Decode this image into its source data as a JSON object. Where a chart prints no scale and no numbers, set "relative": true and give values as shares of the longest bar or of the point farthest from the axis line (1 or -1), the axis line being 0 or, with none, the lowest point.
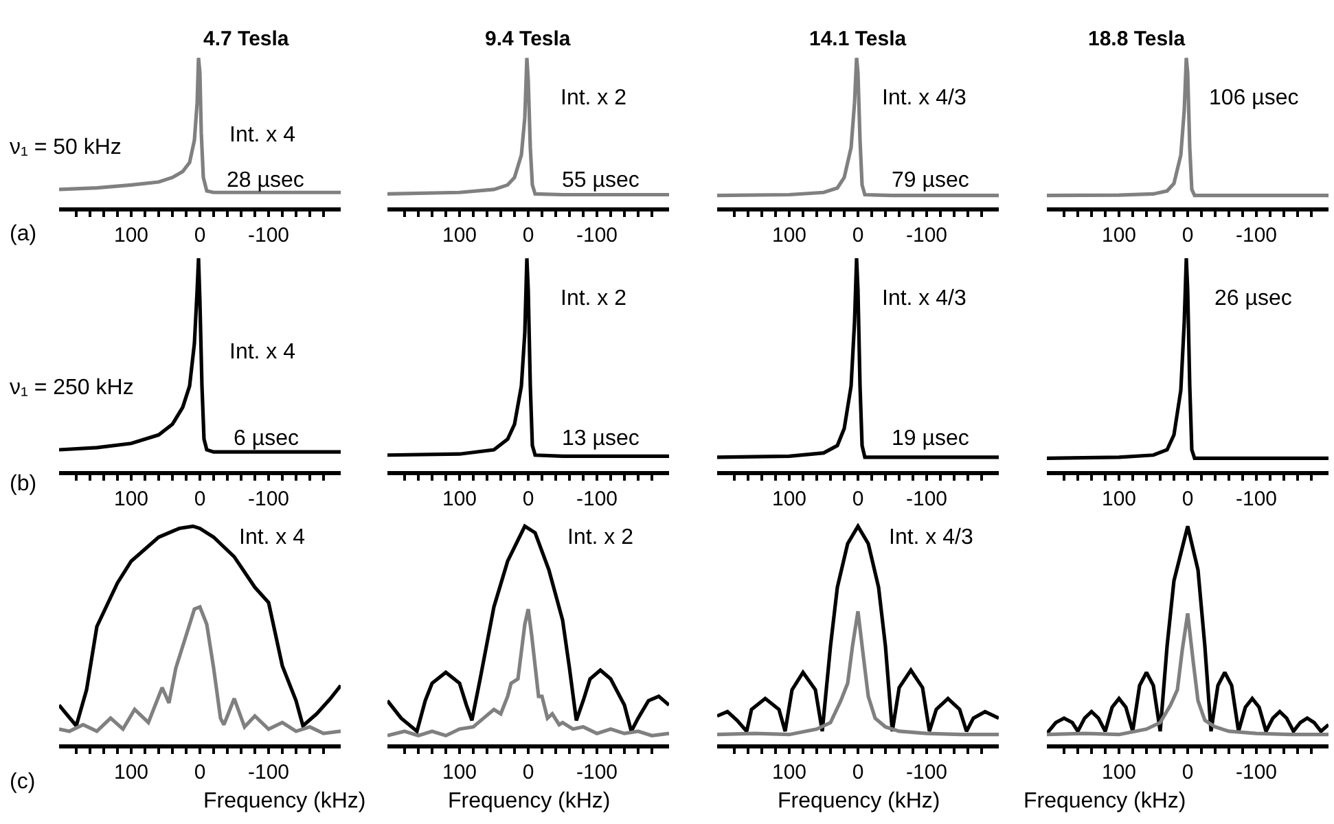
{
  "chart_data": [
    {
      "type": "line",
      "relative": true,
      "title": "4.7 Tesla",
      "annotations": [
        "Int. x 4",
        "28 µsec",
        "ν₁ = 50 kHz",
        "(a)"
      ],
      "xlim": [
        205,
        -205
      ],
      "xticks": [
        {
          "value": 180,
          "label": null
        },
        {
          "value": 160,
          "label": null
        },
        {
          "value": 140,
          "label": null
        },
        {
          "value": 120,
          "label": null
        },
        100,
        {
          "value": 80,
          "label": null
        },
        {
          "value": 60,
          "label": null
        },
        {
          "value": 40,
          "label": null
        },
        {
          "value": 20,
          "label": null
        },
        0,
        {
          "value": -20,
          "label": null
        },
        {
          "value": -40,
          "label": null
        },
        {
          "value": -60,
          "label": null
        },
        {
          "value": -80,
          "label": null
        },
        -100,
        {
          "value": -120,
          "label": null
        },
        {
          "value": -140,
          "label": null
        },
        {
          "value": -160,
          "label": null
        },
        {
          "value": -180,
          "label": null
        }
      ],
      "series": [
        {
          "color": "#808080",
          "x": [
            205,
            150,
            100,
            60,
            40,
            25,
            15,
            8,
            4,
            2,
            0,
            -2,
            -5,
            -10,
            -20,
            -50,
            -100,
            -150,
            -205
          ],
          "values": [
            0.12,
            0.13,
            0.15,
            0.17,
            0.2,
            0.24,
            0.3,
            0.45,
            0.7,
            1.0,
            0.9,
            0.5,
            0.2,
            0.11,
            0.1,
            0.1,
            0.1,
            0.1,
            0.1
          ]
        }
      ]
    },
    {
      "type": "line",
      "relative": true,
      "title": "9.4 Tesla",
      "annotations": [
        "Int. x 2",
        "55 µsec"
      ],
      "xlim": [
        205,
        -205
      ],
      "xticks": [
        {
          "value": 180,
          "label": null
        },
        {
          "value": 160,
          "label": null
        },
        {
          "value": 140,
          "label": null
        },
        {
          "value": 120,
          "label": null
        },
        100,
        {
          "value": 80,
          "label": null
        },
        {
          "value": 60,
          "label": null
        },
        {
          "value": 40,
          "label": null
        },
        {
          "value": 20,
          "label": null
        },
        0,
        {
          "value": -20,
          "label": null
        },
        {
          "value": -40,
          "label": null
        },
        {
          "value": -60,
          "label": null
        },
        {
          "value": -80,
          "label": null
        },
        -100,
        {
          "value": -120,
          "label": null
        },
        {
          "value": -140,
          "label": null
        },
        {
          "value": -160,
          "label": null
        },
        {
          "value": -180,
          "label": null
        }
      ],
      "series": [
        {
          "color": "#808080",
          "x": [
            205,
            100,
            50,
            30,
            20,
            10,
            5,
            2,
            0,
            -3,
            -6,
            -10,
            -50,
            -100,
            -205
          ],
          "values": [
            0.09,
            0.1,
            0.12,
            0.15,
            0.2,
            0.35,
            0.6,
            1.0,
            0.85,
            0.4,
            0.15,
            0.09,
            0.085,
            0.085,
            0.085
          ]
        }
      ]
    },
    {
      "type": "line",
      "relative": true,
      "title": "14.1 Tesla",
      "annotations": [
        "Int. x 4/3",
        "79 µsec"
      ],
      "xlim": [
        205,
        -205
      ],
      "xticks": [
        {
          "value": 180,
          "label": null
        },
        {
          "value": 160,
          "label": null
        },
        {
          "value": 140,
          "label": null
        },
        {
          "value": 120,
          "label": null
        },
        100,
        {
          "value": 80,
          "label": null
        },
        {
          "value": 60,
          "label": null
        },
        {
          "value": 40,
          "label": null
        },
        {
          "value": 20,
          "label": null
        },
        0,
        {
          "value": -20,
          "label": null
        },
        {
          "value": -40,
          "label": null
        },
        {
          "value": -60,
          "label": null
        },
        {
          "value": -80,
          "label": null
        },
        -100,
        {
          "value": -120,
          "label": null
        },
        {
          "value": -140,
          "label": null
        },
        {
          "value": -160,
          "label": null
        },
        {
          "value": -180,
          "label": null
        }
      ],
      "series": [
        {
          "color": "#808080",
          "x": [
            205,
            100,
            50,
            30,
            20,
            10,
            5,
            2,
            0,
            -3,
            -6,
            -10,
            -50,
            -100,
            -205
          ],
          "values": [
            0.08,
            0.085,
            0.1,
            0.13,
            0.2,
            0.4,
            0.7,
            1.0,
            0.9,
            0.45,
            0.15,
            0.085,
            0.08,
            0.08,
            0.08
          ]
        }
      ]
    },
    {
      "type": "line",
      "relative": true,
      "title": "18.8 Tesla",
      "annotations": [
        "106 µsec"
      ],
      "xlim": [
        205,
        -205
      ],
      "xticks": [
        {
          "value": 180,
          "label": null
        },
        {
          "value": 160,
          "label": null
        },
        {
          "value": 140,
          "label": null
        },
        {
          "value": 120,
          "label": null
        },
        100,
        {
          "value": 80,
          "label": null
        },
        {
          "value": 60,
          "label": null
        },
        {
          "value": 40,
          "label": null
        },
        {
          "value": 20,
          "label": null
        },
        0,
        {
          "value": -20,
          "label": null
        },
        {
          "value": -40,
          "label": null
        },
        {
          "value": -60,
          "label": null
        },
        {
          "value": -80,
          "label": null
        },
        -100,
        {
          "value": -120,
          "label": null
        },
        {
          "value": -140,
          "label": null
        },
        {
          "value": -160,
          "label": null
        },
        {
          "value": -180,
          "label": null
        }
      ],
      "series": [
        {
          "color": "#808080",
          "x": [
            205,
            100,
            50,
            30,
            20,
            10,
            5,
            2,
            0,
            -3,
            -6,
            -10,
            -50,
            -100,
            -205
          ],
          "values": [
            0.08,
            0.082,
            0.09,
            0.11,
            0.16,
            0.35,
            0.65,
            1.0,
            0.9,
            0.4,
            0.12,
            0.08,
            0.08,
            0.08,
            0.08
          ]
        }
      ]
    },
    {
      "type": "line",
      "relative": true,
      "annotations": [
        "Int. x 4",
        "6 µsec",
        "ν₁ = 250 kHz",
        "(b)"
      ],
      "xlim": [
        205,
        -205
      ],
      "xticks": [
        {
          "value": 180,
          "label": null
        },
        {
          "value": 160,
          "label": null
        },
        {
          "value": 140,
          "label": null
        },
        {
          "value": 120,
          "label": null
        },
        100,
        {
          "value": 80,
          "label": null
        },
        {
          "value": 60,
          "label": null
        },
        {
          "value": 40,
          "label": null
        },
        {
          "value": 20,
          "label": null
        },
        0,
        {
          "value": -20,
          "label": null
        },
        {
          "value": -40,
          "label": null
        },
        {
          "value": -60,
          "label": null
        },
        {
          "value": -80,
          "label": null
        },
        -100,
        {
          "value": -120,
          "label": null
        },
        {
          "value": -140,
          "label": null
        },
        {
          "value": -160,
          "label": null
        },
        {
          "value": -180,
          "label": null
        }
      ],
      "series": [
        {
          "color": "#000000",
          "x": [
            205,
            150,
            100,
            60,
            40,
            25,
            15,
            8,
            4,
            2,
            0,
            -3,
            -6,
            -10,
            -20,
            -50,
            -100,
            -150,
            -205
          ],
          "values": [
            0.1,
            0.11,
            0.13,
            0.17,
            0.22,
            0.3,
            0.4,
            0.6,
            0.85,
            1.0,
            0.8,
            0.4,
            0.15,
            0.1,
            0.09,
            0.09,
            0.09,
            0.09,
            0.09
          ]
        }
      ]
    },
    {
      "type": "line",
      "relative": true,
      "annotations": [
        "Int. x 2",
        "13 µsec"
      ],
      "xlim": [
        205,
        -205
      ],
      "xticks": [
        {
          "value": 180,
          "label": null
        },
        {
          "value": 160,
          "label": null
        },
        {
          "value": 140,
          "label": null
        },
        {
          "value": 120,
          "label": null
        },
        100,
        {
          "value": 80,
          "label": null
        },
        {
          "value": 60,
          "label": null
        },
        {
          "value": 40,
          "label": null
        },
        {
          "value": 20,
          "label": null
        },
        0,
        {
          "value": -20,
          "label": null
        },
        {
          "value": -40,
          "label": null
        },
        {
          "value": -60,
          "label": null
        },
        {
          "value": -80,
          "label": null
        },
        -100,
        {
          "value": -120,
          "label": null
        },
        {
          "value": -140,
          "label": null
        },
        {
          "value": -160,
          "label": null
        },
        {
          "value": -180,
          "label": null
        }
      ],
      "series": [
        {
          "color": "#000000",
          "x": [
            205,
            100,
            50,
            30,
            20,
            10,
            5,
            2,
            0,
            -3,
            -6,
            -10,
            -50,
            -100,
            -205
          ],
          "values": [
            0.075,
            0.08,
            0.1,
            0.15,
            0.22,
            0.4,
            0.65,
            1.0,
            0.85,
            0.4,
            0.12,
            0.075,
            0.07,
            0.07,
            0.07
          ]
        }
      ]
    },
    {
      "type": "line",
      "relative": true,
      "annotations": [
        "Int. x 4/3",
        "19 µsec"
      ],
      "xlim": [
        205,
        -205
      ],
      "xticks": [
        {
          "value": 180,
          "label": null
        },
        {
          "value": 160,
          "label": null
        },
        {
          "value": 140,
          "label": null
        },
        {
          "value": 120,
          "label": null
        },
        100,
        {
          "value": 80,
          "label": null
        },
        {
          "value": 60,
          "label": null
        },
        {
          "value": 40,
          "label": null
        },
        {
          "value": 20,
          "label": null
        },
        0,
        {
          "value": -20,
          "label": null
        },
        {
          "value": -40,
          "label": null
        },
        {
          "value": -60,
          "label": null
        },
        {
          "value": -80,
          "label": null
        },
        -100,
        {
          "value": -120,
          "label": null
        },
        {
          "value": -140,
          "label": null
        },
        {
          "value": -160,
          "label": null
        },
        {
          "value": -180,
          "label": null
        }
      ],
      "series": [
        {
          "color": "#000000",
          "x": [
            205,
            100,
            50,
            30,
            20,
            10,
            5,
            2,
            0,
            -3,
            -6,
            -10,
            -50,
            -100,
            -205
          ],
          "values": [
            0.065,
            0.07,
            0.085,
            0.12,
            0.2,
            0.4,
            0.7,
            1.0,
            0.85,
            0.4,
            0.12,
            0.065,
            0.065,
            0.065,
            0.065
          ]
        }
      ]
    },
    {
      "type": "line",
      "relative": true,
      "annotations": [
        "26 µsec"
      ],
      "xlim": [
        205,
        -205
      ],
      "xticks": [
        {
          "value": 180,
          "label": null
        },
        {
          "value": 160,
          "label": null
        },
        {
          "value": 140,
          "label": null
        },
        {
          "value": 120,
          "label": null
        },
        100,
        {
          "value": 80,
          "label": null
        },
        {
          "value": 60,
          "label": null
        },
        {
          "value": 40,
          "label": null
        },
        {
          "value": 20,
          "label": null
        },
        0,
        {
          "value": -20,
          "label": null
        },
        {
          "value": -40,
          "label": null
        },
        {
          "value": -60,
          "label": null
        },
        {
          "value": -80,
          "label": null
        },
        -100,
        {
          "value": -120,
          "label": null
        },
        {
          "value": -140,
          "label": null
        },
        {
          "value": -160,
          "label": null
        },
        {
          "value": -180,
          "label": null
        }
      ],
      "series": [
        {
          "color": "#000000",
          "x": [
            205,
            100,
            50,
            30,
            20,
            10,
            5,
            2,
            0,
            -3,
            -6,
            -10,
            -50,
            -100,
            -205
          ],
          "values": [
            0.06,
            0.065,
            0.075,
            0.1,
            0.17,
            0.38,
            0.7,
            1.0,
            0.85,
            0.4,
            0.1,
            0.06,
            0.06,
            0.06,
            0.06
          ]
        }
      ]
    },
    {
      "type": "line",
      "relative": true,
      "xlabel": "Frequency (kHz)",
      "annotations": [
        "Int. x 4",
        "(c)"
      ],
      "xlim": [
        205,
        -205
      ],
      "xticks": [
        {
          "value": 180,
          "label": null
        },
        {
          "value": 160,
          "label": null
        },
        {
          "value": 140,
          "label": null
        },
        {
          "value": 120,
          "label": null
        },
        100,
        {
          "value": 80,
          "label": null
        },
        {
          "value": 60,
          "label": null
        },
        {
          "value": 40,
          "label": null
        },
        {
          "value": 20,
          "label": null
        },
        0,
        {
          "value": -20,
          "label": null
        },
        {
          "value": -40,
          "label": null
        },
        {
          "value": -60,
          "label": null
        },
        {
          "value": -80,
          "label": null
        },
        -100,
        {
          "value": -120,
          "label": null
        },
        {
          "value": -140,
          "label": null
        },
        {
          "value": -160,
          "label": null
        },
        {
          "value": -180,
          "label": null
        }
      ],
      "series": [
        {
          "color": "#000000",
          "x": [
            205,
            180,
            165,
            150,
            120,
            100,
            60,
            30,
            10,
            0,
            -20,
            -50,
            -80,
            -100,
            -120,
            -140,
            -150,
            -170,
            -190,
            -205
          ],
          "values": [
            0.18,
            0.085,
            0.25,
            0.54,
            0.74,
            0.84,
            0.95,
            0.99,
            1.0,
            0.99,
            0.95,
            0.86,
            0.72,
            0.65,
            0.36,
            0.2,
            0.085,
            0.14,
            0.21,
            0.27
          ]
        },
        {
          "color": "#808080",
          "x": [
            205,
            190,
            170,
            150,
            130,
            112,
            95,
            75,
            55,
            45,
            35,
            20,
            8,
            0,
            -10,
            -20,
            -30,
            -35,
            -50,
            -65,
            -80,
            -100,
            -120,
            -140,
            -160,
            -180,
            -205
          ],
          "values": [
            0.07,
            0.06,
            0.09,
            0.06,
            0.12,
            0.07,
            0.16,
            0.1,
            0.26,
            0.19,
            0.35,
            0.5,
            0.62,
            0.63,
            0.55,
            0.35,
            0.12,
            0.09,
            0.21,
            0.08,
            0.13,
            0.07,
            0.1,
            0.06,
            0.08,
            0.05,
            0.06
          ]
        }
      ]
    },
    {
      "type": "line",
      "relative": true,
      "xlabel": "Frequency (kHz)",
      "annotations": [
        "Int. x 2"
      ],
      "xlim": [
        205,
        -205
      ],
      "xticks": [
        {
          "value": 180,
          "label": null
        },
        {
          "value": 160,
          "label": null
        },
        {
          "value": 140,
          "label": null
        },
        {
          "value": 120,
          "label": null
        },
        100,
        {
          "value": 80,
          "label": null
        },
        {
          "value": 60,
          "label": null
        },
        {
          "value": 40,
          "label": null
        },
        {
          "value": 20,
          "label": null
        },
        0,
        {
          "value": -20,
          "label": null
        },
        {
          "value": -40,
          "label": null
        },
        {
          "value": -60,
          "label": null
        },
        {
          "value": -80,
          "label": null
        },
        -100,
        {
          "value": -120,
          "label": null
        },
        {
          "value": -140,
          "label": null
        },
        {
          "value": -160,
          "label": null
        },
        {
          "value": -180,
          "label": null
        }
      ],
      "series": [
        {
          "color": "#000000",
          "x": [
            205,
            185,
            162,
            150,
            140,
            120,
            100,
            90,
            82,
            70,
            50,
            30,
            5,
            -10,
            -30,
            -50,
            -60,
            -70,
            -80,
            -90,
            -105,
            -120,
            -140,
            -150,
            -160,
            -175,
            -190,
            -205
          ],
          "values": [
            0.2,
            0.12,
            0.06,
            0.2,
            0.28,
            0.33,
            0.28,
            0.18,
            0.11,
            0.3,
            0.63,
            0.84,
            1.0,
            0.97,
            0.8,
            0.57,
            0.35,
            0.11,
            0.2,
            0.3,
            0.34,
            0.3,
            0.18,
            0.06,
            0.12,
            0.2,
            0.22,
            0.18
          ]
        },
        {
          "color": "#808080",
          "x": [
            205,
            180,
            160,
            140,
            120,
            100,
            80,
            65,
            50,
            40,
            30,
            25,
            15,
            5,
            0,
            -5,
            -15,
            -20,
            -28,
            -35,
            -45,
            -50,
            -65,
            -80,
            -100,
            -120,
            -140,
            -160,
            -180,
            -205
          ],
          "values": [
            0.04,
            0.06,
            0.04,
            0.06,
            0.04,
            0.07,
            0.08,
            0.12,
            0.16,
            0.14,
            0.22,
            0.28,
            0.3,
            0.55,
            0.62,
            0.5,
            0.22,
            0.22,
            0.12,
            0.14,
            0.09,
            0.1,
            0.07,
            0.08,
            0.05,
            0.07,
            0.05,
            0.06,
            0.04,
            0.05
          ]
        }
      ]
    },
    {
      "type": "line",
      "relative": true,
      "xlabel": "Frequency (kHz)",
      "annotations": [
        "Int. x 4/3"
      ],
      "xlim": [
        205,
        -205
      ],
      "xticks": [
        {
          "value": 180,
          "label": null
        },
        {
          "value": 160,
          "label": null
        },
        {
          "value": 140,
          "label": null
        },
        {
          "value": 120,
          "label": null
        },
        100,
        {
          "value": 80,
          "label": null
        },
        {
          "value": 60,
          "label": null
        },
        {
          "value": 40,
          "label": null
        },
        {
          "value": 20,
          "label": null
        },
        0,
        {
          "value": -20,
          "label": null
        },
        {
          "value": -40,
          "label": null
        },
        {
          "value": -60,
          "label": null
        },
        {
          "value": -80,
          "label": null
        },
        -100,
        {
          "value": -120,
          "label": null
        },
        {
          "value": -140,
          "label": null
        },
        {
          "value": -160,
          "label": null
        },
        {
          "value": -180,
          "label": null
        }
      ],
      "series": [
        {
          "color": "#000000",
          "x": [
            205,
            190,
            176,
            162,
            155,
            135,
            115,
            106,
            96,
            80,
            62,
            52,
            40,
            30,
            15,
            0,
            -15,
            -30,
            -40,
            -50,
            -60,
            -77,
            -94,
            -104,
            -114,
            -131,
            -148,
            -158,
            -168,
            -185,
            -205
          ],
          "values": [
            0.13,
            0.15,
            0.11,
            0.06,
            0.16,
            0.21,
            0.16,
            0.06,
            0.25,
            0.33,
            0.25,
            0.06,
            0.45,
            0.72,
            0.92,
            1.0,
            0.92,
            0.72,
            0.45,
            0.06,
            0.26,
            0.34,
            0.26,
            0.06,
            0.16,
            0.21,
            0.16,
            0.06,
            0.12,
            0.15,
            0.12
          ]
        },
        {
          "color": "#808080",
          "x": [
            205,
            150,
            100,
            60,
            40,
            25,
            15,
            8,
            0,
            -8,
            -15,
            -25,
            -40,
            -60,
            -100,
            -150,
            -205
          ],
          "values": [
            0.045,
            0.05,
            0.045,
            0.07,
            0.1,
            0.2,
            0.28,
            0.45,
            0.61,
            0.4,
            0.22,
            0.12,
            0.08,
            0.06,
            0.05,
            0.045,
            0.045
          ]
        }
      ]
    },
    {
      "type": "line",
      "relative": true,
      "xlabel": "Frequency (kHz)",
      "xlim": [
        205,
        -205
      ],
      "xticks": [
        {
          "value": 180,
          "label": null
        },
        {
          "value": 160,
          "label": null
        },
        {
          "value": 140,
          "label": null
        },
        {
          "value": 120,
          "label": null
        },
        100,
        {
          "value": 80,
          "label": null
        },
        {
          "value": 60,
          "label": null
        },
        {
          "value": 40,
          "label": null
        },
        {
          "value": 20,
          "label": null
        },
        0,
        {
          "value": -20,
          "label": null
        },
        {
          "value": -40,
          "label": null
        },
        {
          "value": -60,
          "label": null
        },
        {
          "value": -80,
          "label": null
        },
        -100,
        {
          "value": -120,
          "label": null
        },
        {
          "value": -140,
          "label": null
        },
        {
          "value": -160,
          "label": null
        },
        {
          "value": -180,
          "label": null
        }
      ],
      "series": [
        {
          "color": "#000000",
          "x": [
            205,
            192,
            180,
            168,
            160,
            150,
            140,
            130,
            120,
            110,
            100,
            90,
            80,
            70,
            60,
            50,
            40,
            30,
            20,
            0,
            -15,
            -25,
            -34,
            -44,
            -54,
            -64,
            -74,
            -84,
            -94,
            -104,
            -114,
            -124,
            -134,
            -144,
            -154,
            -164,
            -174,
            -184,
            -194,
            -205
          ],
          "values": [
            0.05,
            0.1,
            0.12,
            0.1,
            0.06,
            0.12,
            0.15,
            0.12,
            0.06,
            0.17,
            0.21,
            0.17,
            0.06,
            0.27,
            0.33,
            0.27,
            0.06,
            0.45,
            0.75,
            1.0,
            0.8,
            0.45,
            0.06,
            0.27,
            0.33,
            0.27,
            0.06,
            0.17,
            0.21,
            0.17,
            0.06,
            0.12,
            0.15,
            0.12,
            0.06,
            0.1,
            0.12,
            0.1,
            0.06,
            0.09
          ]
        },
        {
          "color": "#808080",
          "x": [
            205,
            150,
            100,
            60,
            40,
            25,
            15,
            8,
            0,
            -8,
            -15,
            -25,
            -40,
            -60,
            -100,
            -150,
            -205
          ],
          "values": [
            0.045,
            0.05,
            0.045,
            0.07,
            0.1,
            0.18,
            0.25,
            0.43,
            0.6,
            0.38,
            0.2,
            0.11,
            0.08,
            0.06,
            0.05,
            0.045,
            0.045
          ]
        }
      ]
    }
  ]
}
